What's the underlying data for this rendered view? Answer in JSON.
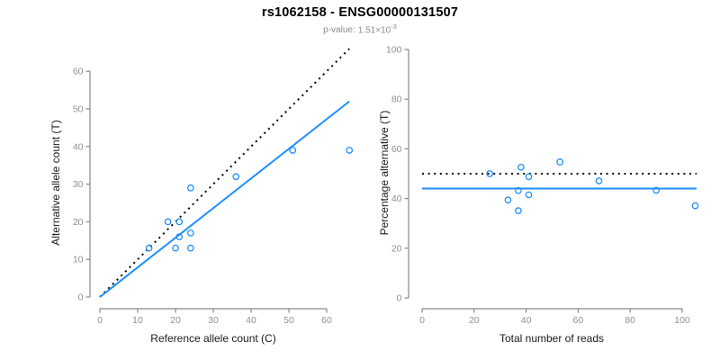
{
  "figure": {
    "title": "rs1062158 - ENSG00000131507",
    "pvalue_label": "p-value:",
    "pvalue_base": "1.51×10",
    "pvalue_exponent": "-3"
  },
  "colors": {
    "point_blue": "#1E8FFF",
    "fit_line_blue": "#1E8FFF",
    "reference_line_black": "#000000",
    "axis_gray": "#888888",
    "tick_label_gray": "#909090",
    "axis_title_dark": "#1A1A1A",
    "subtitle_gray": "#8C8C8C",
    "background": "#FFFFFF"
  },
  "chart_data": [
    {
      "type": "scatter",
      "panel": "left",
      "xlabel": "Reference allele count (C)",
      "ylabel": "Alternative allele count (T)",
      "xlim": [
        0,
        66
      ],
      "ylim": [
        0,
        66
      ],
      "x_ticks": [
        0,
        10,
        20,
        30,
        40,
        50,
        60
      ],
      "y_ticks": [
        0,
        10,
        20,
        30,
        40,
        50,
        60
      ],
      "grid": false,
      "legend": false,
      "points": [
        [
          13,
          13
        ],
        [
          18,
          20
        ],
        [
          20,
          13
        ],
        [
          21,
          16
        ],
        [
          21,
          20
        ],
        [
          24,
          13
        ],
        [
          24,
          17
        ],
        [
          24,
          29
        ],
        [
          36,
          32
        ],
        [
          51,
          39
        ],
        [
          66,
          39
        ]
      ],
      "lines": [
        {
          "name": "identity",
          "style": "dotted",
          "color": "#000000",
          "x1": 0,
          "y1": 0,
          "x2": 66,
          "y2": 66
        },
        {
          "name": "fit",
          "style": "solid",
          "color": "#1E8FFF",
          "x1": 0,
          "y1": 0,
          "x2": 66,
          "y2": 52
        }
      ]
    },
    {
      "type": "scatter",
      "panel": "right",
      "xlabel": "Total number of reads",
      "ylabel": "Percentage alternative (T)",
      "xlim": [
        0,
        107
      ],
      "ylim": [
        0,
        100
      ],
      "x_ticks": [
        0,
        20,
        40,
        60,
        80,
        100
      ],
      "y_ticks": [
        0,
        20,
        40,
        60,
        80,
        100
      ],
      "grid": false,
      "legend": false,
      "points": [
        [
          26,
          50
        ],
        [
          33,
          39.4
        ],
        [
          37,
          43.2
        ],
        [
          37,
          35.1
        ],
        [
          38,
          52.6
        ],
        [
          41,
          48.8
        ],
        [
          41,
          41.5
        ],
        [
          53,
          54.7
        ],
        [
          68,
          47.1
        ],
        [
          90,
          43.3
        ],
        [
          105,
          37.1
        ]
      ],
      "lines": [
        {
          "name": "expected-50pct",
          "style": "dotted",
          "color": "#000000",
          "x1": 0,
          "y1": 50,
          "x2": 105.5,
          "y2": 50
        },
        {
          "name": "mean-fit",
          "style": "solid",
          "color": "#1E8FFF",
          "x1": 0,
          "y1": 44,
          "x2": 105.5,
          "y2": 44
        }
      ]
    }
  ]
}
